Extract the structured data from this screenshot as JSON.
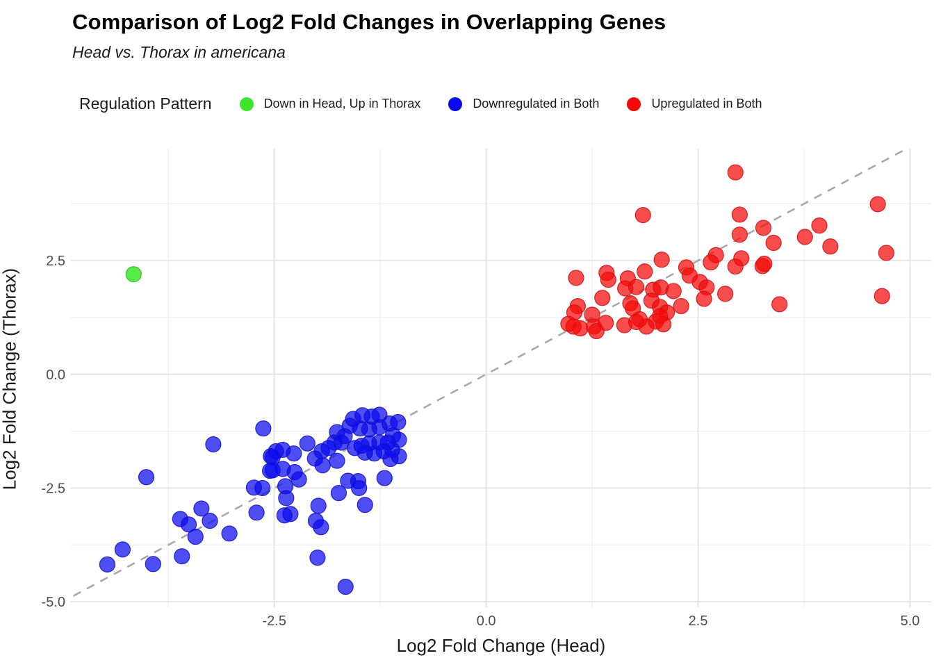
{
  "title": "Comparison of Log2 Fold Changes in Overlapping Genes",
  "subtitle": "Head vs. Thorax in americana",
  "legend": {
    "title": "Regulation Pattern",
    "items": [
      {
        "label": "Down in Head, Up in Thorax",
        "color": "#3ce62c"
      },
      {
        "label": "Downregulated in Both",
        "color": "#0a0aee"
      },
      {
        "label": "Upregulated in Both",
        "color": "#f50808"
      }
    ]
  },
  "axes": {
    "x": {
      "label": "Log2 Fold Change (Head)",
      "tick_values": [
        -2.5,
        0,
        2.5,
        5
      ],
      "tick_labels": [
        "-2.5",
        "0.0",
        "2.5",
        "5.0"
      ],
      "minor_ticks": [
        -3.75,
        -1.25,
        1.25,
        3.75
      ],
      "range": [
        -4.9,
        5.25
      ]
    },
    "y": {
      "label": "Log2 Fold Change (Thorax)",
      "tick_values": [
        2.5,
        0,
        -2.5,
        -5
      ],
      "tick_labels": [
        "2.5",
        "0.0",
        "-2.5",
        "-5.0"
      ],
      "minor_ticks": [
        3.75,
        1.25,
        -1.25,
        -3.75
      ],
      "range": [
        -5.12,
        4.96
      ]
    }
  },
  "style": {
    "grid_major_color": "#e4e4e4",
    "grid_minor_color": "#efefef",
    "tick_label_color": "#4d4d4d",
    "reference_line_color": "#a8a8a8",
    "point_radius": 11
  },
  "chart_data": {
    "type": "scatter",
    "title": "Comparison of Log2 Fold Changes in Overlapping Genes",
    "subtitle": "Head vs. Thorax in americana",
    "xlabel": "Log2 Fold Change (Head)",
    "ylabel": "Log2 Fold Change (Thorax)",
    "xlim": [
      -4.9,
      5.25
    ],
    "ylim": [
      -5.12,
      4.96
    ],
    "legend_position": "top",
    "grid": true,
    "reference_line": {
      "type": "identity y=x",
      "style": "dashed",
      "from": [
        -4.87,
        -4.87
      ],
      "to": [
        4.96,
        4.96
      ]
    },
    "series": [
      {
        "name": "Down in Head, Up in Thorax",
        "color": "#3ce62c",
        "stroke": "#2bc01e",
        "fill_opacity": 0.85,
        "points": [
          [
            -4.16,
            2.2
          ]
        ]
      },
      {
        "name": "Downregulated in Both",
        "color": "#0a0aee",
        "stroke": "#1515c8",
        "fill_opacity": 0.72,
        "points": [
          [
            -4.47,
            -4.18
          ],
          [
            -4.29,
            -3.85
          ],
          [
            -3.93,
            -4.17
          ],
          [
            -3.59,
            -4.0
          ],
          [
            -4.01,
            -2.26
          ],
          [
            -3.61,
            -3.18
          ],
          [
            -3.51,
            -3.3
          ],
          [
            -3.36,
            -2.95
          ],
          [
            -3.26,
            -3.22
          ],
          [
            -3.43,
            -3.57
          ],
          [
            -3.03,
            -3.5
          ],
          [
            -3.22,
            -1.54
          ],
          [
            -2.63,
            -1.19
          ],
          [
            -2.74,
            -2.49
          ],
          [
            -2.64,
            -2.5
          ],
          [
            -2.71,
            -3.04
          ],
          [
            -2.55,
            -2.12
          ],
          [
            -2.54,
            -1.8
          ],
          [
            -1.57,
            -0.98
          ],
          [
            -1.46,
            -0.9
          ],
          [
            -1.35,
            -0.93
          ],
          [
            -1.26,
            -0.89
          ],
          [
            -1.61,
            -1.13
          ],
          [
            -1.49,
            -1.19
          ],
          [
            -1.38,
            -1.21
          ],
          [
            -1.26,
            -1.16
          ],
          [
            -1.14,
            -1.08
          ],
          [
            -1.04,
            -1.05
          ],
          [
            -1.1,
            -1.34
          ],
          [
            -1.03,
            -1.44
          ],
          [
            -1.16,
            -1.5
          ],
          [
            -1.26,
            -1.5
          ],
          [
            -1.38,
            -1.52
          ],
          [
            -1.47,
            -1.57
          ],
          [
            -1.55,
            -1.62
          ],
          [
            -1.43,
            -1.72
          ],
          [
            -1.32,
            -1.74
          ],
          [
            -1.21,
            -1.69
          ],
          [
            -1.11,
            -1.66
          ],
          [
            -1.03,
            -1.8
          ],
          [
            -1.13,
            -1.86
          ],
          [
            -1.76,
            -1.27
          ],
          [
            -1.79,
            -1.5
          ],
          [
            -1.71,
            -1.5
          ],
          [
            -1.67,
            -1.36
          ],
          [
            -2.11,
            -1.52
          ],
          [
            -1.94,
            -1.69
          ],
          [
            -1.86,
            -1.62
          ],
          [
            -2.02,
            -1.85
          ],
          [
            -1.93,
            -2.0
          ],
          [
            -1.76,
            -1.9
          ],
          [
            -2.27,
            -1.74
          ],
          [
            -2.4,
            -1.66
          ],
          [
            -2.48,
            -1.69
          ],
          [
            -2.52,
            -1.82
          ],
          [
            -2.4,
            -2.08
          ],
          [
            -2.52,
            -2.11
          ],
          [
            -2.26,
            -2.15
          ],
          [
            -2.21,
            -2.31
          ],
          [
            -2.37,
            -2.46
          ],
          [
            -2.36,
            -2.72
          ],
          [
            -2.31,
            -3.07
          ],
          [
            -2.38,
            -3.1
          ],
          [
            -1.98,
            -2.89
          ],
          [
            -2.01,
            -3.22
          ],
          [
            -1.95,
            -3.36
          ],
          [
            -1.74,
            -2.61
          ],
          [
            -1.63,
            -2.34
          ],
          [
            -1.51,
            -2.35
          ],
          [
            -1.5,
            -2.5
          ],
          [
            -1.43,
            -2.87
          ],
          [
            -1.2,
            -2.28
          ],
          [
            -1.99,
            -4.03
          ],
          [
            -1.66,
            -4.67
          ]
        ]
      },
      {
        "name": "Upregulated in Both",
        "color": "#f50808",
        "stroke": "#d01414",
        "fill_opacity": 0.72,
        "points": [
          [
            1.06,
            2.12
          ],
          [
            1.42,
            2.23
          ],
          [
            1.44,
            2.08
          ],
          [
            1.87,
            2.26
          ],
          [
            2.07,
            2.52
          ],
          [
            2.36,
            2.35
          ],
          [
            2.4,
            2.17
          ],
          [
            2.71,
            2.62
          ],
          [
            2.65,
            2.46
          ],
          [
            2.94,
            2.37
          ],
          [
            3.26,
            2.38
          ],
          [
            1.67,
            2.11
          ],
          [
            1.64,
            1.89
          ],
          [
            1.77,
            1.92
          ],
          [
            1.97,
            1.86
          ],
          [
            2.06,
            1.91
          ],
          [
            2.21,
            1.83
          ],
          [
            2.52,
            2.03
          ],
          [
            2.6,
            1.91
          ],
          [
            2.82,
            1.77
          ],
          [
            1.37,
            1.68
          ],
          [
            1.08,
            1.5
          ],
          [
            1.04,
            1.36
          ],
          [
            1.7,
            1.56
          ],
          [
            1.73,
            1.45
          ],
          [
            1.95,
            1.62
          ],
          [
            2.05,
            1.48
          ],
          [
            2.13,
            1.36
          ],
          [
            2.3,
            1.5
          ],
          [
            2.57,
            1.66
          ],
          [
            0.97,
            1.11
          ],
          [
            1.03,
            1.05
          ],
          [
            1.11,
            1.01
          ],
          [
            1.27,
            1.05
          ],
          [
            1.3,
            0.95
          ],
          [
            1.41,
            1.13
          ],
          [
            1.63,
            1.08
          ],
          [
            1.81,
            1.21
          ],
          [
            1.77,
            1.15
          ],
          [
            1.89,
            1.05
          ],
          [
            2.0,
            1.16
          ],
          [
            2.05,
            1.28
          ],
          [
            2.09,
            1.1
          ],
          [
            1.25,
            1.31
          ],
          [
            1.85,
            3.5
          ],
          [
            2.94,
            4.44
          ],
          [
            2.99,
            3.51
          ],
          [
            2.99,
            3.07
          ],
          [
            3.27,
            3.22
          ],
          [
            3.39,
            2.89
          ],
          [
            3.76,
            3.02
          ],
          [
            3.93,
            3.27
          ],
          [
            4.06,
            2.81
          ],
          [
            4.62,
            3.74
          ],
          [
            4.72,
            2.67
          ],
          [
            3.28,
            2.43
          ],
          [
            3.01,
            2.55
          ],
          [
            3.46,
            1.54
          ],
          [
            4.67,
            1.72
          ]
        ]
      }
    ]
  }
}
